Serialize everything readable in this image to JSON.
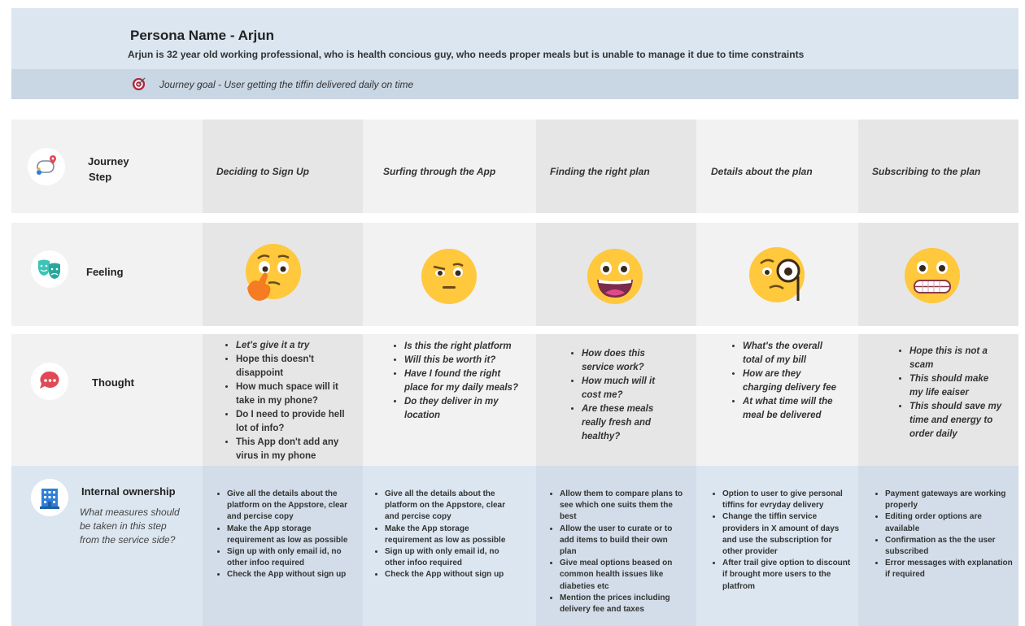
{
  "persona": {
    "name": "Persona Name - Arjun",
    "description": "Arjun is 32 year old working professional, who is health concious guy, who needs proper meals but is unable to manage it due to time constraints",
    "goal": "Journey goal -  User getting the tiffin delivered daily  on time"
  },
  "rows": {
    "journey": {
      "label_line1": "Journey",
      "label_line2": "Step",
      "icon": "route-icon"
    },
    "feeling": {
      "label": "Feeling",
      "icon": "theater-masks-icon"
    },
    "thought": {
      "label": "Thought",
      "icon": "speech-bubble-icon"
    },
    "internal": {
      "label": "Internal ownership",
      "sublabel": "What measures should be taken in this step from the service side?",
      "icon": "building-icon"
    }
  },
  "steps": [
    "Deciding to Sign Up",
    "Surfing through the App",
    "Finding the right plan",
    "Details about the plan",
    "Subscribing to the plan"
  ],
  "feelings": [
    "thinking-face",
    "squinting-face",
    "grinning-face",
    "monocle-face",
    "grimacing-face"
  ],
  "thoughts": [
    [
      "Let's give it a try",
      "Hope this doesn't disappoint",
      "How much space will it take in my phone?",
      "Do I need to provide hell lot of info?",
      "This App don't add any virus in my phone"
    ],
    [
      "Is this the right platform",
      "Will this be worth it?",
      "Have I found the right place for my daily meals?",
      "Do they deliver in my location"
    ],
    [
      "How does this service work?",
      "How much will it cost me?",
      "Are these meals really fresh and healthy?"
    ],
    [
      "What's the overall total of my bill",
      "How are they charging delivery fee",
      "At what time will the meal be delivered"
    ],
    [
      "Hope this is not a scam",
      "This should make my life eaiser",
      "This should save my time and energy to order daily"
    ]
  ],
  "measures": [
    [
      "Give all the details about the platform on the Appstore, clear and percise copy",
      "Make the App storage requirement as low as possible",
      "Sign up with only email id, no other infoo required",
      "Check the App without sign up"
    ],
    [
      "Give all the details about the platform on the Appstore, clear and percise copy",
      "Make the App storage requirement as low as possible",
      "Sign up with only email id, no other infoo required",
      "Check the App without sign up"
    ],
    [
      "Allow them to compare plans to see which one suits them the best",
      "Allow the user to curate or to add items to build their own plan",
      "Give meal options beased on common health issues like diabeties etc",
      "Mention the prices including delivery fee and taxes"
    ],
    [
      "Option to user to give personal tiffins for evryday delivery",
      "Change the tiffin service providers in X amount of days and use the subscription for other provider",
      "After trail give option to discount if brought more users to the platfrom"
    ],
    [
      "Payment gateways are working properly",
      "Editing order options are available",
      "Confirmation as the the user subscribed",
      "Error messages with explanation if required"
    ]
  ],
  "colors": {
    "header_bg": "#dce6f0",
    "goal_bar": "#c9d6e4",
    "row_bg": "#f2f2f2",
    "col_shade": "#e6e6e6",
    "emoji_yellow": "#ffc83d",
    "thought_icon": "#e04a57",
    "feeling_icon": "#3bc4b8",
    "building_icon": "#2f7fd6"
  }
}
